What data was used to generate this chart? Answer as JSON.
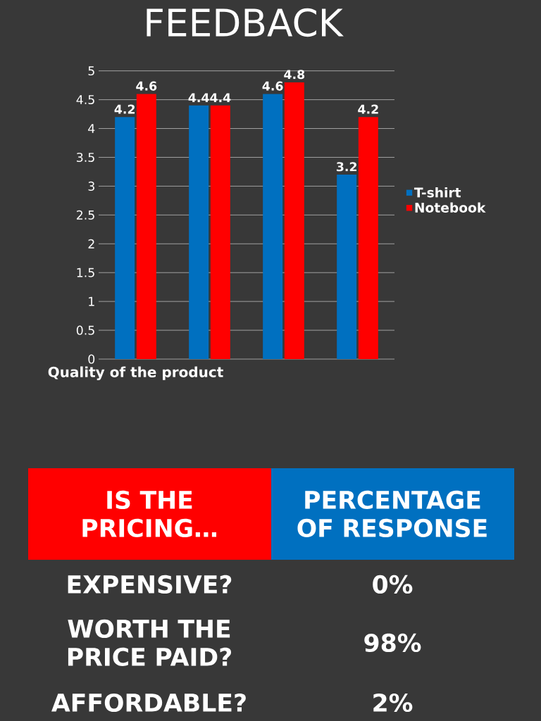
{
  "chart_data": [
    {
      "type": "bar",
      "title": "FEEDBACK",
      "categories": [
        "Quality of the product",
        null,
        null,
        null
      ],
      "series": [
        {
          "name": "T-shirt",
          "color": "#0070c0",
          "values": [
            4.2,
            4.4,
            4.6,
            3.2
          ]
        },
        {
          "name": "Notebook",
          "color": "#ff0000",
          "values": [
            4.6,
            4.4,
            4.8,
            4.2
          ]
        }
      ],
      "ylim": [
        0,
        5
      ],
      "yticks": [
        0,
        0.5,
        1,
        1.5,
        2,
        2.5,
        3,
        3.5,
        4,
        4.5,
        5
      ],
      "grid": "y",
      "legend": "right",
      "data_labels": true
    },
    {
      "type": "other",
      "xlabel": "IS THE PRICING…",
      "ylabel": "PERCENTAGE OF RESPONSE",
      "categories": [
        "EXPENSIVE?",
        "WORTH THE PRICE PAID?",
        "AFFORDABLE?"
      ],
      "value_labels": [
        "0%",
        "98%",
        "2%"
      ]
    }
  ]
}
